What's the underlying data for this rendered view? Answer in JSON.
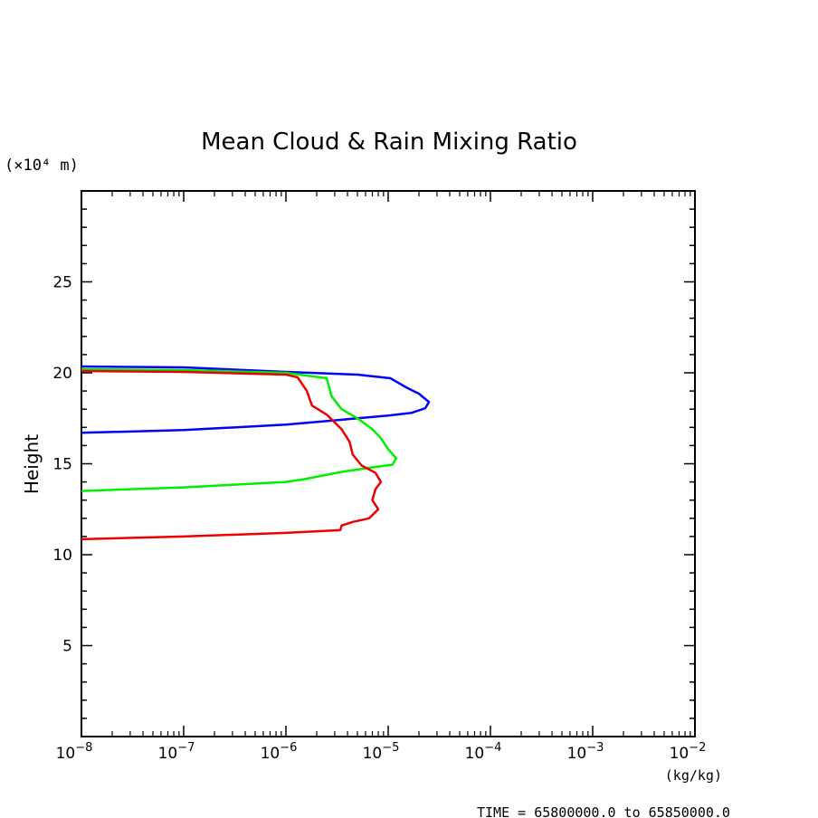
{
  "chart_data": {
    "type": "line",
    "title": "Mean Cloud & Rain Mixing Ratio",
    "ylabel": "Height",
    "y_multiplier_label": "(×10⁴ m)",
    "xunit_label": "(kg/kg)",
    "footer": "TIME = 65800000.0 to 65850000.0",
    "x_scale": "log",
    "xlim": [
      1e-08,
      0.01
    ],
    "ylim": [
      0,
      30
    ],
    "x_ticks": [
      {
        "value": 1e-08,
        "base": "10",
        "exp": "−8"
      },
      {
        "value": 1e-07,
        "base": "10",
        "exp": "−7"
      },
      {
        "value": 1e-06,
        "base": "10",
        "exp": "−6"
      },
      {
        "value": 1e-05,
        "base": "10",
        "exp": "−5"
      },
      {
        "value": 0.0001,
        "base": "10",
        "exp": "−4"
      },
      {
        "value": 0.001,
        "base": "10",
        "exp": "−3"
      },
      {
        "value": 0.01,
        "base": "10",
        "exp": "−2"
      }
    ],
    "y_ticks": [
      5,
      10,
      15,
      20,
      25
    ],
    "series": [
      {
        "color": "#0000ff",
        "points": [
          [
            1e-08,
            20.35
          ],
          [
            1e-07,
            20.3
          ],
          [
            1e-06,
            20.05
          ],
          [
            5e-06,
            19.9
          ],
          [
            1.05e-05,
            19.7
          ],
          [
            1.5e-05,
            19.2
          ],
          [
            2e-05,
            18.85
          ],
          [
            2.5e-05,
            18.4
          ],
          [
            2.3e-05,
            18.05
          ],
          [
            1.7e-05,
            17.8
          ],
          [
            1e-05,
            17.65
          ],
          [
            4e-06,
            17.45
          ],
          [
            1e-06,
            17.15
          ],
          [
            1e-07,
            16.85
          ],
          [
            1e-08,
            16.7
          ]
        ]
      },
      {
        "color": "#00ee00",
        "points": [
          [
            1e-08,
            20.2
          ],
          [
            1e-07,
            20.15
          ],
          [
            1e-06,
            20.0
          ],
          [
            2.5e-06,
            19.7
          ],
          [
            2.8e-06,
            18.7
          ],
          [
            3.5e-06,
            18.0
          ],
          [
            5e-06,
            17.5
          ],
          [
            7e-06,
            16.9
          ],
          [
            8.5e-06,
            16.4
          ],
          [
            1e-05,
            15.8
          ],
          [
            1.2e-05,
            15.3
          ],
          [
            1.1e-05,
            14.95
          ],
          [
            7e-06,
            14.8
          ],
          [
            3.5e-06,
            14.55
          ],
          [
            1.5e-06,
            14.15
          ],
          [
            1e-06,
            14.0
          ],
          [
            1e-07,
            13.7
          ],
          [
            1e-08,
            13.5
          ]
        ]
      },
      {
        "color": "#ee0000",
        "points": [
          [
            1e-08,
            20.1
          ],
          [
            1e-07,
            20.05
          ],
          [
            1e-06,
            19.9
          ],
          [
            1.3e-06,
            19.75
          ],
          [
            1.6e-06,
            19.0
          ],
          [
            1.8e-06,
            18.2
          ],
          [
            2.5e-06,
            17.7
          ],
          [
            3.5e-06,
            16.9
          ],
          [
            4.2e-06,
            16.2
          ],
          [
            4.5e-06,
            15.5
          ],
          [
            5.5e-06,
            14.9
          ],
          [
            7.5e-06,
            14.5
          ],
          [
            8.5e-06,
            14.0
          ],
          [
            7.5e-06,
            13.6
          ],
          [
            7e-06,
            13.0
          ],
          [
            8e-06,
            12.5
          ],
          [
            6.5e-06,
            12.0
          ],
          [
            4.5e-06,
            11.8
          ],
          [
            3.5e-06,
            11.6
          ],
          [
            3.4e-06,
            11.35
          ],
          [
            1e-06,
            11.2
          ],
          [
            1e-07,
            11.0
          ],
          [
            1e-08,
            10.85
          ]
        ]
      }
    ]
  }
}
